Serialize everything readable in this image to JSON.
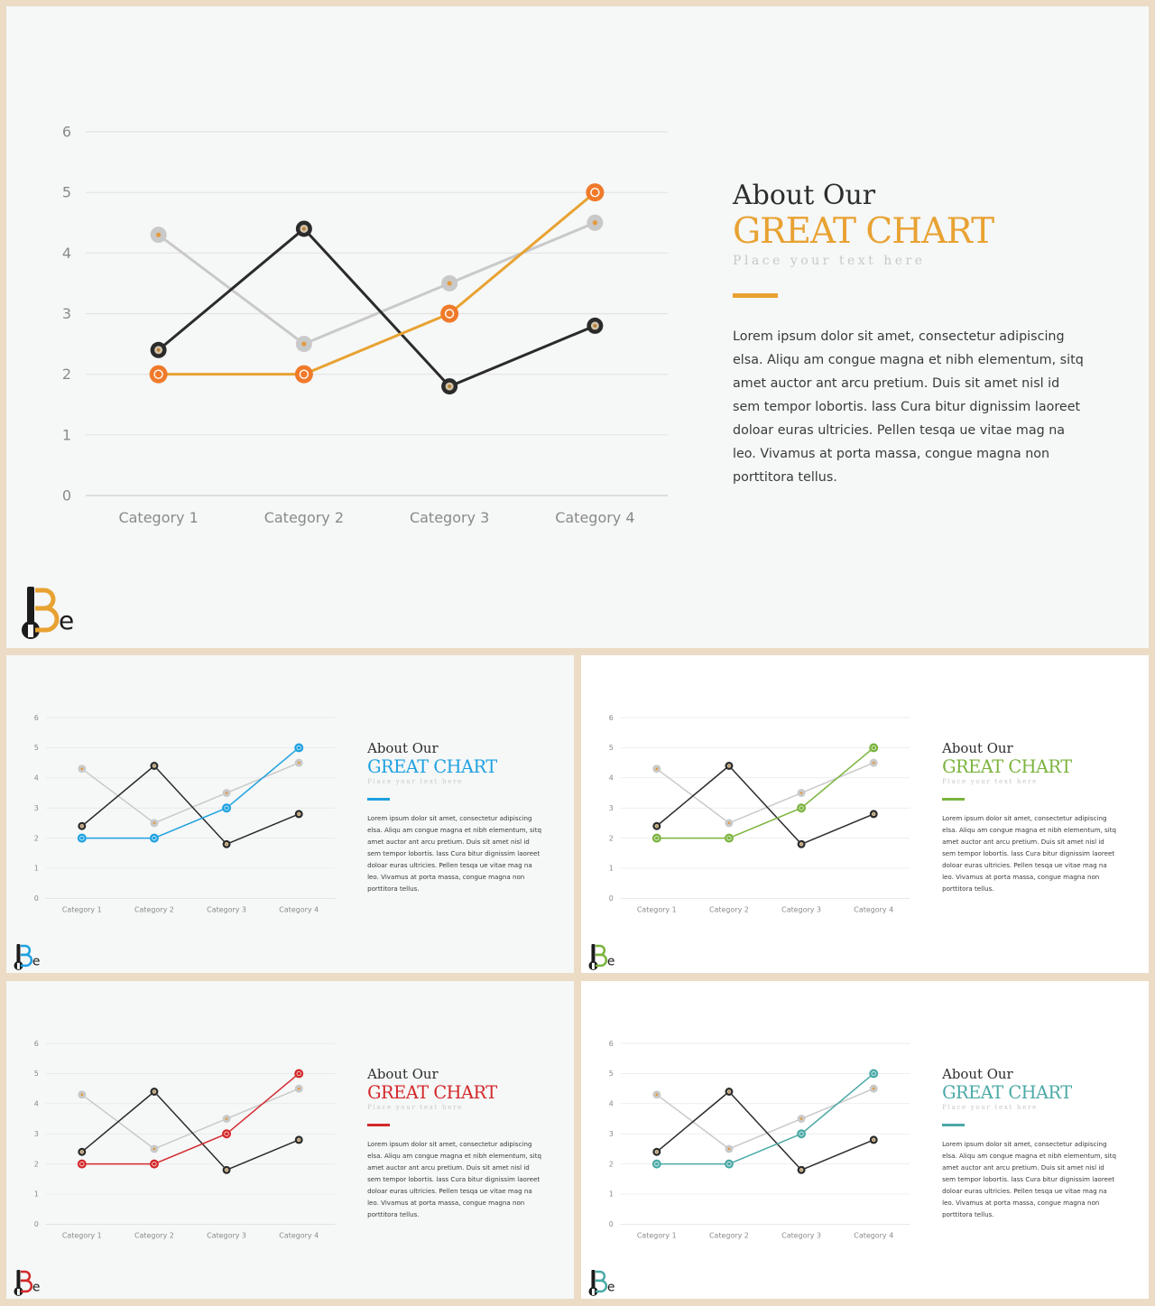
{
  "slides": [
    {
      "accent": "#e8a232",
      "title_line1": "About Our",
      "title_line2": "GREAT CHART",
      "subtitle": "Place your text here",
      "body": "Lorem ipsum dolor sit amet, consectetur adipiscing elsa. Aliqu am congue magna et nibh elementum, sitq amet auctor ant arcu pretium. Duis sit amet nisl id sem tempor lobortis. lass Cura bitur dignissim laoreet doloar euras ultricies. Pellen tesqa ue vitae mag na leo. Vivamus at porta massa, congue magna non porttitora tellus.",
      "logo_text": "Be"
    },
    {
      "accent": "#1da1e0",
      "title_line1": "About Our",
      "title_line2": "GREAT CHART",
      "subtitle": "Place your text here",
      "body": "Lorem ipsum dolor sit amet, consectetur adipiscing elsa. Aliqu am congue magna et nibh elementum, sitq amet auctor ant arcu pretium. Duis sit amet nisl id sem tempor lobortis. lass Cura bitur dignissim laoreet doloar euras ultricies. Pellen tesqa ue vitae mag na leo. Vivamus at porta massa, congue magna non porttitora tellus.",
      "logo_text": "Be"
    },
    {
      "accent": "#7ab33c",
      "title_line1": "About Our",
      "title_line2": "GREAT CHART",
      "subtitle": "Place your text here",
      "body": "Lorem ipsum dolor sit amet, consectetur adipiscing elsa. Aliqu am congue magna et nibh elementum, sitq amet auctor ant arcu pretium. Duis sit amet nisl id sem tempor lobortis. lass Cura bitur dignissim laoreet doloar euras ultricies. Pellen tesqa ue vitae mag na leo. Vivamus at porta massa, congue magna non porttitora tellus.",
      "logo_text": "Be"
    },
    {
      "accent": "#d3282a",
      "title_line1": "About Our",
      "title_line2": "GREAT CHART",
      "subtitle": "Place your text here",
      "body": "Lorem ipsum dolor sit amet, consectetur adipiscing elsa. Aliqu am congue magna et nibh elementum, sitq amet auctor ant arcu pretium. Duis sit amet nisl id sem tempor lobortis. lass Cura bitur dignissim laoreet doloar euras ultricies. Pellen tesqa ue vitae mag na leo. Vivamus at porta massa, congue magna non porttitora tellus.",
      "logo_text": "Be"
    },
    {
      "accent": "#4aa9a6",
      "title_line1": "About Our",
      "title_line2": "GREAT CHART",
      "subtitle": "Place your text here",
      "body": "Lorem ipsum dolor sit amet, consectetur adipiscing elsa. Aliqu am congue magna et nibh elementum, sitq amet auctor ant arcu pretium. Duis sit amet nisl id sem tempor lobortis. lass Cura bitur dignissim laoreet doloar euras ultricies. Pellen tesqa ue vitae mag na leo. Vivamus at porta massa, congue magna non porttitora tellus.",
      "logo_text": "Be"
    }
  ],
  "chart_data": {
    "type": "line",
    "categories": [
      "Category 1",
      "Category 2",
      "Category 3",
      "Category 4"
    ],
    "ylim": [
      0,
      6
    ],
    "yticks": [
      0,
      1,
      2,
      3,
      4,
      5,
      6
    ],
    "grid": true,
    "legend": "none",
    "series": [
      {
        "color": "#c9c9c9",
        "values": [
          4.3,
          2.5,
          3.5,
          4.5
        ]
      },
      {
        "color": "#2b2b2b",
        "values": [
          2.4,
          4.4,
          1.8,
          2.8
        ]
      },
      {
        "color": "accent",
        "values": [
          2.0,
          2.0,
          3.0,
          5.0
        ]
      }
    ],
    "first_slide_accent_marker": "#f07a2a"
  }
}
